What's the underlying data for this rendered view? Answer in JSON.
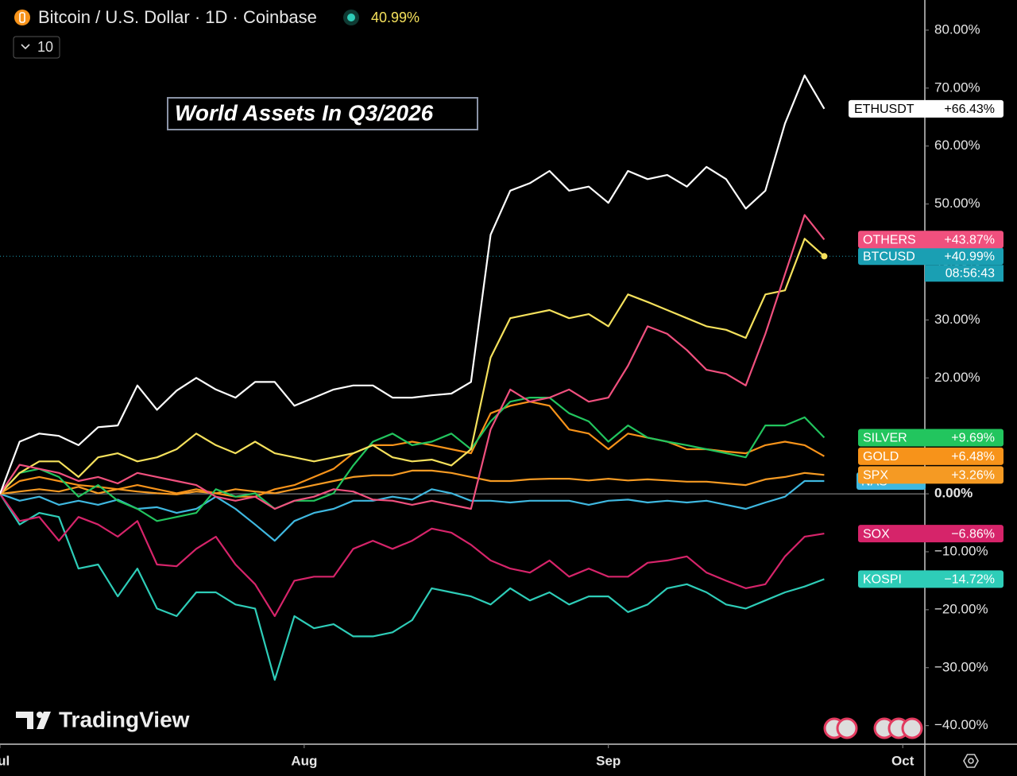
{
  "chart_data": {
    "type": "line",
    "symbol": "Bitcoin / U.S. Dollar · 1D · Coinbase",
    "change": "40.99%",
    "indicator_count": 10,
    "title": "World Assets In Q3/2026",
    "countdown": "08:56:43",
    "brand": "TradingView",
    "x": [
      0,
      2,
      4,
      6,
      8,
      10,
      12,
      14,
      16,
      18,
      20,
      22,
      24,
      26,
      28,
      30,
      32,
      34,
      36,
      38,
      40,
      42,
      44,
      46,
      48,
      50,
      52,
      54,
      56,
      58,
      60,
      62,
      64,
      66,
      68,
      70,
      72,
      74,
      76,
      78,
      80,
      82,
      84
    ],
    "xlim": [
      0,
      94.25
    ],
    "xticks": [
      {
        "value": 0,
        "label": "Jul"
      },
      {
        "value": 31,
        "label": "Aug"
      },
      {
        "value": 62,
        "label": "Sep"
      },
      {
        "value": 92,
        "label": "Oct"
      }
    ],
    "ylim": [
      -43.2,
      85.2
    ],
    "yticks": [
      {
        "value": -40,
        "label": "−40.00%"
      },
      {
        "value": -30,
        "label": "−30.00%"
      },
      {
        "value": -20,
        "label": "−20.00%"
      },
      {
        "value": -10,
        "label": "−10.00%"
      },
      {
        "value": 0,
        "label": "0.00%"
      },
      {
        "value": 10,
        "label": "10.00%"
      },
      {
        "value": 20,
        "label": "20.00%"
      },
      {
        "value": 30,
        "label": "30.00%"
      },
      {
        "value": 40,
        "label": "40.00%"
      },
      {
        "value": 50,
        "label": "50.00%"
      },
      {
        "value": 60,
        "label": "60.00%"
      },
      {
        "value": 70,
        "label": "70.00%"
      },
      {
        "value": 80,
        "label": "80.00%"
      }
    ],
    "series": [
      {
        "name": "KOSPI",
        "color": "#2ecdb8",
        "value_label": "−14.72%",
        "values": [
          0,
          -5.3,
          -3.3,
          -4,
          -12.9,
          -12.2,
          -17.7,
          -12.9,
          -19.8,
          -21.1,
          -17,
          -17,
          -19.1,
          -19.8,
          -32.1,
          -21.1,
          -23.2,
          -22.5,
          -24.6,
          -24.6,
          -23.9,
          -21.8,
          -16.3,
          -17,
          -17.7,
          -19.1,
          -16.3,
          -18.4,
          -17,
          -19.1,
          -17.7,
          -17.7,
          -20.4,
          -19.1,
          -16.3,
          -15.6,
          -17,
          -19.1,
          -19.8,
          -18.4,
          -17,
          -16,
          -14.72
        ]
      },
      {
        "name": "SOX",
        "color": "#d6246a",
        "value_label": "−6.86%",
        "values": [
          0,
          -4.7,
          -4,
          -8.1,
          -4,
          -5.3,
          -7.4,
          -4.7,
          -12.2,
          -12.5,
          -9.5,
          -7.4,
          -12.2,
          -15.6,
          -21.1,
          -15,
          -14.3,
          -14.3,
          -9.5,
          -8.1,
          -9.5,
          -8.1,
          -6,
          -6.7,
          -8.8,
          -11.5,
          -12.9,
          -13.6,
          -11.5,
          -14.3,
          -12.9,
          -14.3,
          -14.3,
          -11.9,
          -11.5,
          -10.8,
          -13.6,
          -15,
          -16.3,
          -15.6,
          -10.8,
          -7.4,
          -6.86
        ]
      },
      {
        "name": "NAS",
        "color": "#3fb8e0",
        "values": [
          0,
          -1.2,
          -0.5,
          -1.9,
          -1.2,
          -1.9,
          -1,
          -2.6,
          -2.3,
          -3.3,
          -2.6,
          -0.5,
          -2.6,
          -5.3,
          -8.1,
          -4.7,
          -3.3,
          -2.6,
          -1.2,
          -1.2,
          -0.5,
          -1,
          0.8,
          0.1,
          -1.2,
          -1.2,
          -1.5,
          -1.2,
          -1.2,
          -1.2,
          -1.9,
          -1.2,
          -1,
          -1.5,
          -1.2,
          -1.5,
          -1.2,
          -1.9,
          -2.6,
          -1.5,
          -0.5,
          2.2,
          2.2
        ]
      },
      {
        "name": "SPX",
        "color": "#f59a23",
        "value_label": "+3.26%",
        "values": [
          0,
          0.4,
          0.8,
          0.4,
          1.2,
          0.1,
          0.8,
          0.4,
          0.1,
          -0.1,
          0.4,
          0.1,
          0.8,
          0.4,
          0.1,
          0.8,
          1.5,
          2.2,
          2.9,
          3.2,
          3.2,
          4,
          4,
          3.6,
          2.9,
          2.2,
          2.2,
          2.5,
          2.6,
          2.6,
          2.3,
          2.6,
          2.3,
          2.5,
          2.3,
          2.1,
          2.1,
          1.8,
          1.5,
          2.5,
          2.9,
          3.6,
          3.26
        ]
      },
      {
        "name": "GOLD",
        "color": "#f7931a",
        "value_label": "+6.48%",
        "values": [
          0,
          2.2,
          2.9,
          2.2,
          1.5,
          1.2,
          0.8,
          1.5,
          0.8,
          0.1,
          0.8,
          0.1,
          -0.5,
          -0.5,
          0.8,
          1.5,
          2.9,
          4.3,
          7,
          8.4,
          8.4,
          9,
          8.4,
          7.7,
          7,
          13.9,
          15.2,
          15.9,
          15.2,
          11.1,
          10.4,
          7.7,
          10.4,
          9.7,
          9,
          7.7,
          7.7,
          7.3,
          7,
          8.4,
          9,
          8.4,
          6.48
        ]
      },
      {
        "name": "SILVER",
        "color": "#22c55e",
        "value_label": "+9.69%",
        "values": [
          0,
          3.6,
          4.3,
          2.9,
          -0.5,
          1.5,
          -1.2,
          -2.6,
          -4.7,
          -4,
          -3.3,
          0.8,
          -0.5,
          0.1,
          -2.6,
          -1.2,
          -1.2,
          0.1,
          4.9,
          9,
          10.4,
          8.4,
          9,
          10.4,
          7.7,
          12.5,
          15.9,
          16.6,
          16.6,
          13.9,
          12.5,
          9,
          11.8,
          9.7,
          9,
          8.4,
          7.7,
          7,
          6.3,
          11.8,
          11.8,
          13.2,
          9.69
        ]
      },
      {
        "name": "BTCUSD",
        "color": "#f5e15c",
        "value_label": "+40.99%",
        "values": [
          0,
          3.6,
          5.6,
          5.6,
          2.9,
          6.3,
          7,
          5.6,
          6.3,
          7.7,
          10.4,
          8.4,
          7,
          9,
          7,
          6.3,
          5.6,
          6.3,
          7,
          8.4,
          6.3,
          5.6,
          5.9,
          4.9,
          7.7,
          23.5,
          30.3,
          31,
          31.7,
          30.3,
          31,
          28.9,
          34.4,
          33.1,
          31.7,
          30.3,
          28.9,
          28.3,
          26.9,
          34.4,
          35.1,
          44,
          40.99
        ]
      },
      {
        "name": "OTHERS",
        "color": "#f0507e",
        "value_label": "+43.87%",
        "values": [
          0,
          5,
          4.3,
          3.6,
          2.2,
          2.9,
          1.8,
          3.6,
          2.9,
          2.2,
          1.5,
          -0.5,
          -1.2,
          -0.5,
          -2.6,
          -1.2,
          -0.5,
          0.8,
          0.4,
          -1,
          -1.2,
          -1.9,
          -1.2,
          -1.9,
          -2.6,
          11.1,
          18,
          15.9,
          16.6,
          18,
          15.9,
          16.6,
          22.1,
          28.9,
          27.6,
          24.8,
          21.4,
          20.7,
          18.7,
          27.6,
          37.9,
          48.1,
          43.87
        ]
      },
      {
        "name": "ETHUSDT",
        "color": "#ffffff",
        "value_label": "+66.43%",
        "values": [
          0,
          9,
          10.4,
          10,
          8.4,
          11.5,
          11.8,
          18.7,
          14.5,
          17.8,
          20,
          18,
          16.6,
          19.3,
          19.3,
          15.2,
          16.6,
          18,
          18.7,
          18.7,
          16.6,
          16.6,
          17,
          17.3,
          19.3,
          44.7,
          52.3,
          53.6,
          55.7,
          52.3,
          53,
          50.2,
          55.7,
          54.3,
          55,
          53,
          56.4,
          54.3,
          49.2,
          52.3,
          63.9,
          72.2,
          66.43
        ]
      }
    ]
  }
}
